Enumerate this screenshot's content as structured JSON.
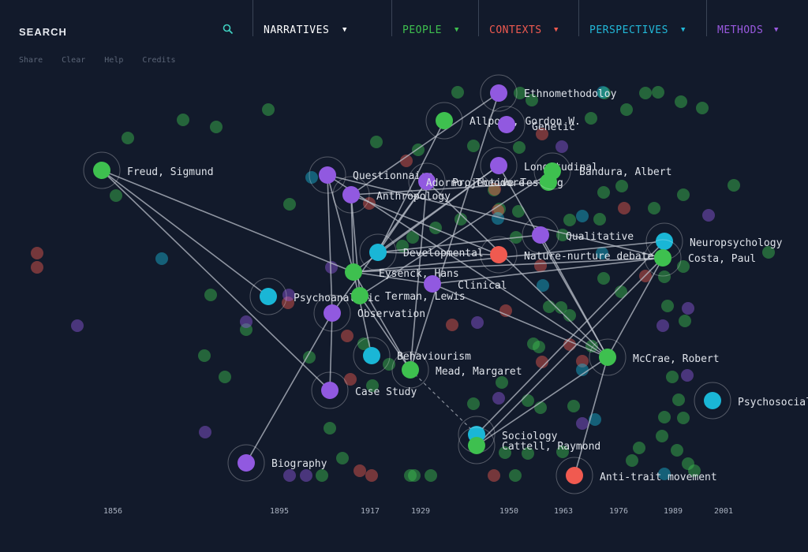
{
  "search": {
    "label": "SEARCH"
  },
  "nav": [
    {
      "label": "NARRATIVES",
      "color": "#ffffff"
    },
    {
      "label": "PEOPLE",
      "color": "#3ec04f"
    },
    {
      "label": "CONTEXTS",
      "color": "#f05a50"
    },
    {
      "label": "PERSPECTIVES",
      "color": "#22b8d8"
    },
    {
      "label": "METHODS",
      "color": "#9a5ae0"
    }
  ],
  "links": [
    "Share",
    "Clear",
    "Help",
    "Credits"
  ],
  "colors": {
    "people": "#3ec04f",
    "contexts": "#f05a50",
    "perspectives": "#1ab6d6",
    "methods": "#9159e0",
    "background": "#121a2b"
  },
  "timeline": [
    "1856",
    "1895",
    "1917",
    "1929",
    "1950",
    "1963",
    "1976",
    "1989",
    "2001"
  ],
  "nodes": [
    {
      "label": "Ethnomethodoloy",
      "type": "methods"
    },
    {
      "label": "Allport, Gordon W.",
      "type": "people"
    },
    {
      "label": "Genetic",
      "type": "methods"
    },
    {
      "label": "Freud, Sigmund",
      "type": "people"
    },
    {
      "label": "Questionnaire",
      "type": "methods"
    },
    {
      "label": "Anthropology",
      "type": "methods"
    },
    {
      "label": "Projective Testing",
      "type": "methods"
    },
    {
      "label": "Longitudinal",
      "type": "methods"
    },
    {
      "label": "Adorno, Theodore",
      "type": "people"
    },
    {
      "label": "Bandura, Albert",
      "type": "people"
    },
    {
      "label": "Qualitative",
      "type": "methods"
    },
    {
      "label": "Neuropsychology",
      "type": "perspectives"
    },
    {
      "label": "Costa, Paul",
      "type": "people"
    },
    {
      "label": "Developmental",
      "type": "perspectives"
    },
    {
      "label": "Nature-nurture debate",
      "type": "contexts"
    },
    {
      "label": "Eysenck, Hans",
      "type": "people"
    },
    {
      "label": "Clinical",
      "type": "methods"
    },
    {
      "label": "Psychoanalytic",
      "type": "perspectives"
    },
    {
      "label": "Terman, Lewis",
      "type": "people"
    },
    {
      "label": "Observation",
      "type": "methods"
    },
    {
      "label": "Behaviourism",
      "type": "perspectives"
    },
    {
      "label": "Mead, Margaret",
      "type": "people"
    },
    {
      "label": "McCrae, Robert",
      "type": "people"
    },
    {
      "label": "Case Study",
      "type": "methods"
    },
    {
      "label": "Psychosocial",
      "type": "perspectives"
    },
    {
      "label": "Sociology",
      "type": "perspectives"
    },
    {
      "label": "Cattell, Raymond",
      "type": "people"
    },
    {
      "label": "Biography",
      "type": "methods"
    },
    {
      "label": "Anti-trait movement",
      "type": "contexts"
    }
  ]
}
